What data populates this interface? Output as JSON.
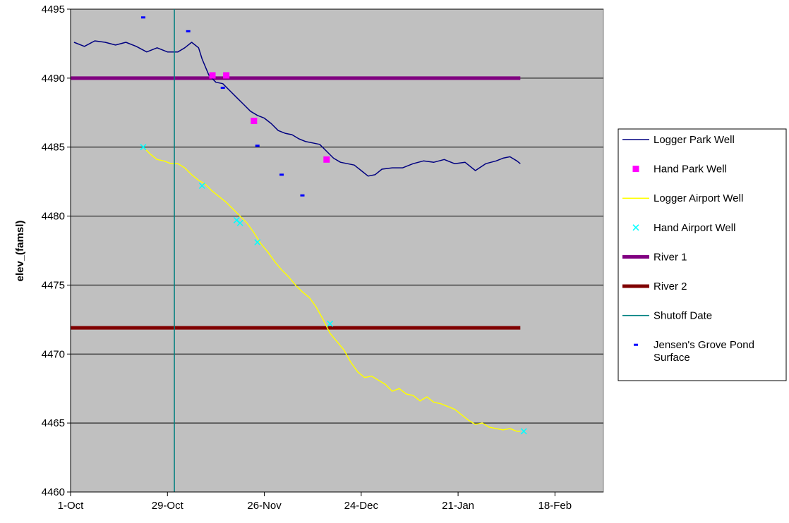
{
  "chart_data": {
    "type": "line",
    "title": "",
    "xlabel": "",
    "ylabel": "elev_(famsl)",
    "xlim": [
      "1-Oct",
      "4-Mar"
    ],
    "ylim": [
      4460,
      4495
    ],
    "x_ticks": [
      "1-Oct",
      "29-Oct",
      "26-Nov",
      "24-Dec",
      "21-Jan",
      "18-Feb"
    ],
    "y_ticks": [
      4460,
      4465,
      4470,
      4475,
      4480,
      4485,
      4490,
      4495
    ],
    "grid": "horizontal",
    "legend_position": "right",
    "plot_background": "#c0c0c0",
    "series": [
      {
        "name": "Logger Park Well",
        "kind": "line",
        "color": "#000080",
        "points": [
          [
            "2-Oct",
            4492.6
          ],
          [
            "5-Oct",
            4492.3
          ],
          [
            "8-Oct",
            4492.7
          ],
          [
            "11-Oct",
            4492.6
          ],
          [
            "14-Oct",
            4492.4
          ],
          [
            "17-Oct",
            4492.6
          ],
          [
            "20-Oct",
            4492.3
          ],
          [
            "23-Oct",
            4491.9
          ],
          [
            "26-Oct",
            4492.2
          ],
          [
            "29-Oct",
            4491.9
          ],
          [
            "1-Nov",
            4491.9
          ],
          [
            "3-Nov",
            4492.2
          ],
          [
            "5-Nov",
            4492.6
          ],
          [
            "7-Nov",
            4492.2
          ],
          [
            "8-Nov",
            4491.4
          ],
          [
            "10-Nov",
            4490.2
          ],
          [
            "12-Nov",
            4489.7
          ],
          [
            "14-Nov",
            4489.6
          ],
          [
            "16-Nov",
            4489.1
          ],
          [
            "18-Nov",
            4488.6
          ],
          [
            "20-Nov",
            4488.1
          ],
          [
            "22-Nov",
            4487.6
          ],
          [
            "24-Nov",
            4487.3
          ],
          [
            "26-Nov",
            4487.1
          ],
          [
            "28-Nov",
            4486.7
          ],
          [
            "30-Nov",
            4486.2
          ],
          [
            "2-Dec",
            4486.0
          ],
          [
            "4-Dec",
            4485.9
          ],
          [
            "6-Dec",
            4485.6
          ],
          [
            "8-Dec",
            4485.4
          ],
          [
            "10-Dec",
            4485.3
          ],
          [
            "12-Dec",
            4485.2
          ],
          [
            "14-Dec",
            4484.7
          ],
          [
            "16-Dec",
            4484.2
          ],
          [
            "18-Dec",
            4483.9
          ],
          [
            "20-Dec",
            4483.8
          ],
          [
            "22-Dec",
            4483.7
          ],
          [
            "24-Dec",
            4483.3
          ],
          [
            "26-Dec",
            4482.9
          ],
          [
            "28-Dec",
            4483.0
          ],
          [
            "30-Dec",
            4483.4
          ],
          [
            "2-Jan",
            4483.5
          ],
          [
            "5-Jan",
            4483.5
          ],
          [
            "8-Jan",
            4483.8
          ],
          [
            "11-Jan",
            4484.0
          ],
          [
            "14-Jan",
            4483.9
          ],
          [
            "17-Jan",
            4484.1
          ],
          [
            "20-Jan",
            4483.8
          ],
          [
            "23-Jan",
            4483.9
          ],
          [
            "26-Jan",
            4483.3
          ],
          [
            "29-Jan",
            4483.8
          ],
          [
            "1-Feb",
            4484.0
          ],
          [
            "3-Feb",
            4484.2
          ],
          [
            "5-Feb",
            4484.3
          ],
          [
            "7-Feb",
            4484.0
          ],
          [
            "8-Feb",
            4483.8
          ]
        ]
      },
      {
        "name": "Hand Park Well",
        "kind": "marker",
        "marker": "square",
        "color": "#ff00ff",
        "points": [
          [
            "11-Nov",
            4490.2
          ],
          [
            "15-Nov",
            4490.2
          ],
          [
            "23-Nov",
            4486.9
          ],
          [
            "14-Dec",
            4484.1
          ]
        ]
      },
      {
        "name": "Logger Airport Well",
        "kind": "line",
        "color": "#ffff00",
        "points": [
          [
            "22-Oct",
            4485.0
          ],
          [
            "24-Oct",
            4484.5
          ],
          [
            "26-Oct",
            4484.1
          ],
          [
            "28-Oct",
            4484.0
          ],
          [
            "30-Oct",
            4483.8
          ],
          [
            "1-Nov",
            4483.8
          ],
          [
            "3-Nov",
            4483.5
          ],
          [
            "5-Nov",
            4483.0
          ],
          [
            "7-Nov",
            4482.6
          ],
          [
            "9-Nov",
            4482.3
          ],
          [
            "11-Nov",
            4481.8
          ],
          [
            "13-Nov",
            4481.4
          ],
          [
            "15-Nov",
            4481.0
          ],
          [
            "17-Nov",
            4480.5
          ],
          [
            "19-Nov",
            4480.0
          ],
          [
            "21-Nov",
            4479.5
          ],
          [
            "23-Nov",
            4478.8
          ],
          [
            "25-Nov",
            4478.0
          ],
          [
            "27-Nov",
            4477.4
          ],
          [
            "29-Nov",
            4476.7
          ],
          [
            "1-Dec",
            4476.1
          ],
          [
            "3-Dec",
            4475.6
          ],
          [
            "5-Dec",
            4475.0
          ],
          [
            "7-Dec",
            4474.5
          ],
          [
            "9-Dec",
            4474.1
          ],
          [
            "11-Dec",
            4473.4
          ],
          [
            "13-Dec",
            4472.5
          ],
          [
            "15-Dec",
            4471.5
          ],
          [
            "17-Dec",
            4470.9
          ],
          [
            "19-Dec",
            4470.3
          ],
          [
            "21-Dec",
            4469.4
          ],
          [
            "23-Dec",
            4468.7
          ],
          [
            "25-Dec",
            4468.3
          ],
          [
            "27-Dec",
            4468.4
          ],
          [
            "29-Dec",
            4468.1
          ],
          [
            "31-Dec",
            4467.8
          ],
          [
            "2-Jan",
            4467.3
          ],
          [
            "4-Jan",
            4467.5
          ],
          [
            "6-Jan",
            4467.1
          ],
          [
            "8-Jan",
            4467.0
          ],
          [
            "10-Jan",
            4466.6
          ],
          [
            "12-Jan",
            4466.9
          ],
          [
            "14-Jan",
            4466.5
          ],
          [
            "16-Jan",
            4466.4
          ],
          [
            "18-Jan",
            4466.2
          ],
          [
            "20-Jan",
            4466.0
          ],
          [
            "22-Jan",
            4465.6
          ],
          [
            "24-Jan",
            4465.2
          ],
          [
            "26-Jan",
            4464.9
          ],
          [
            "28-Jan",
            4465.0
          ],
          [
            "30-Jan",
            4464.7
          ],
          [
            "1-Feb",
            4464.6
          ],
          [
            "3-Feb",
            4464.5
          ],
          [
            "5-Feb",
            4464.6
          ],
          [
            "7-Feb",
            4464.4
          ],
          [
            "8-Feb",
            4464.4
          ]
        ]
      },
      {
        "name": "Hand Airport Well",
        "kind": "marker",
        "marker": "x",
        "color": "#00ffff",
        "points": [
          [
            "22-Oct",
            4485.0
          ],
          [
            "8-Nov",
            4482.2
          ],
          [
            "18-Nov",
            4479.7
          ],
          [
            "19-Nov",
            4479.5
          ],
          [
            "24-Nov",
            4478.1
          ],
          [
            "15-Dec",
            4472.2
          ],
          [
            "9-Feb",
            4464.4
          ]
        ]
      },
      {
        "name": "River 1",
        "kind": "thick-line",
        "color": "#800080",
        "points": [
          [
            "1-Oct",
            4490.0
          ],
          [
            "8-Feb",
            4490.0
          ]
        ]
      },
      {
        "name": "River 2",
        "kind": "thick-line",
        "color": "#800000",
        "points": [
          [
            "1-Oct",
            4471.9
          ],
          [
            "8-Feb",
            4471.9
          ]
        ]
      },
      {
        "name": "Shutoff Date",
        "kind": "vline",
        "color": "#008080",
        "x": "31-Oct"
      },
      {
        "name": "Jensen's Grove Pond Surface",
        "kind": "marker",
        "marker": "dash",
        "color": "#0000ff",
        "points": [
          [
            "22-Oct",
            4494.4
          ],
          [
            "4-Nov",
            4493.4
          ],
          [
            "14-Nov",
            4489.3
          ],
          [
            "24-Nov",
            4485.1
          ],
          [
            "1-Dec",
            4483.0
          ],
          [
            "7-Dec",
            4481.5
          ]
        ]
      }
    ]
  }
}
